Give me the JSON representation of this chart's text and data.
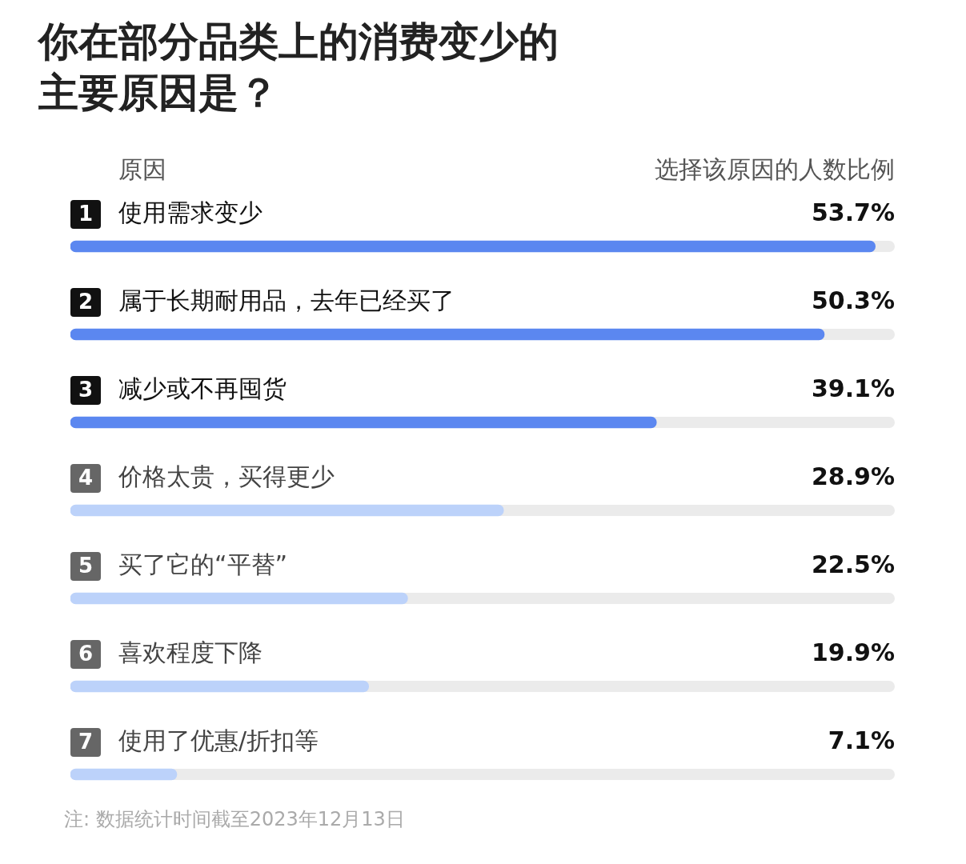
{
  "chart_data": {
    "type": "bar",
    "orientation": "horizontal",
    "title": "你在部分品类上的消费变少的主要原因是？",
    "ylabel": "原因",
    "xlabel": "选择该原因的人数比例",
    "categories": [
      "使用需求变少",
      "属于长期耐用品，去年已经买了",
      "减少或不再囤货",
      "价格太贵，买得更少",
      "买了它的“平替”",
      "喜欢程度下降",
      "使用了优惠/折扣等"
    ],
    "values": [
      53.7,
      50.3,
      39.1,
      28.9,
      22.5,
      19.9,
      7.1
    ],
    "value_labels": [
      "53.7%",
      "50.3%",
      "39.1%",
      "28.9%",
      "22.5%",
      "19.9%",
      "7.1%"
    ],
    "colors": [
      "#5b87f0",
      "#5b87f0",
      "#5b87f0",
      "#bcd2fa",
      "#bcd2fa",
      "#bcd2fa",
      "#bcd2fa"
    ],
    "xlim": [
      0,
      55
    ],
    "tick_labels": false,
    "legend": false,
    "annotations": [
      {
        "text": "1",
        "y": "使用需求变少"
      },
      {
        "text": "2",
        "y": "属于长期耐用品，去年已经买了"
      },
      {
        "text": "3",
        "y": "减少或不再囤货"
      },
      {
        "text": "4",
        "y": "价格太贵，买得更少"
      },
      {
        "text": "5",
        "y": "买了它的“平替”"
      },
      {
        "text": "6",
        "y": "喜欢程度下降"
      },
      {
        "text": "7",
        "y": "使用了优惠/折扣等"
      },
      "注: 数据统计时间截至2023年12月13日"
    ]
  }
}
